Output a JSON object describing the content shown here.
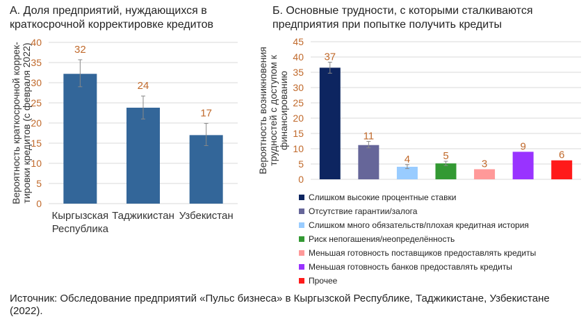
{
  "chart_data": [
    {
      "type": "bar",
      "title": "А. Доля предприятий, нуждающихся в краткосрочной корректировке кредитов",
      "ylabel": "Вероятность краткосрочной коррек-тировки кредитов (с февраля 2022)",
      "categories": [
        "Кыргызская Республика",
        "Таджикистан",
        "Узбекистан"
      ],
      "values": [
        32.2,
        23.8,
        17
      ],
      "data_labels": [
        "32",
        "24",
        "17"
      ],
      "error_low": [
        29,
        21,
        14.4
      ],
      "error_high": [
        35.7,
        26.7,
        19.9
      ],
      "ylim": [
        0,
        40
      ],
      "yticks": [
        0,
        5,
        10,
        15,
        20,
        25,
        30,
        35,
        40
      ],
      "grid": true,
      "color": "#336699",
      "label_color": "#c0692b"
    },
    {
      "type": "bar",
      "title": "Б. Основные трудности, с которыми сталкиваются предприятия при попытке получить кредиты",
      "ylabel": "Вероятность возникновения трудностей с доступом к финансированию",
      "categories": [
        "Слишком высокие процентные ставки",
        "Отсутствие гарантии/залога",
        "Слишком много обязательств/плохая кредитная история",
        "Риск непогашения/неопределённость",
        "Меньшая готовность поставщиков предоставлять кредиты",
        "Меньшая готовность банков предоставлять кредиты",
        "Прочее"
      ],
      "values": [
        36.5,
        11.2,
        4.1,
        5.2,
        3.3,
        9,
        6.2
      ],
      "data_labels": [
        "37",
        "11",
        "4",
        "5",
        "3",
        "9",
        "6"
      ],
      "error_low": [
        34.7,
        10.3,
        3.5,
        4.5,
        null,
        null,
        null
      ],
      "error_high": [
        38.3,
        12.4,
        4.8,
        5.9,
        null,
        null,
        null
      ],
      "colors": [
        "#0d2560",
        "#666699",
        "#99ccff",
        "#339933",
        "#ff9999",
        "#9933ff",
        "#ff1a1a"
      ],
      "ylim": [
        0,
        45
      ],
      "yticks": [
        0,
        5,
        10,
        15,
        20,
        25,
        30,
        35,
        40,
        45
      ],
      "grid": true,
      "legend": "bottom",
      "label_color": "#c0692b"
    }
  ],
  "source": "Источник: Обследование предприятий «Пульс бизнеса» в Кыргызской Республике, Таджикистане, Узбекистане (2022)."
}
